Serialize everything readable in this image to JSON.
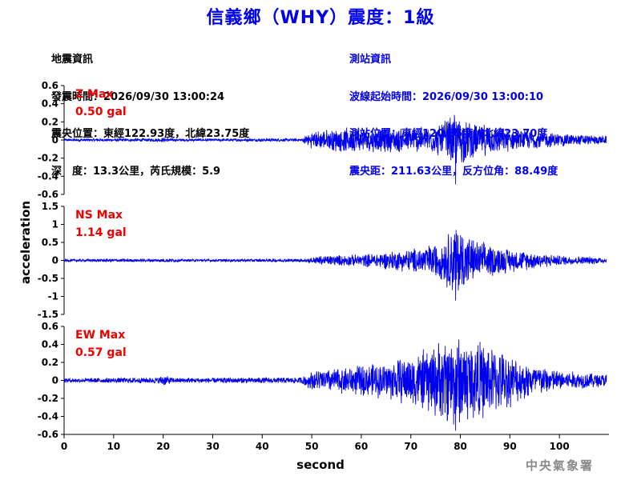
{
  "title": "信義鄉（WHY）震度：1級",
  "quake_info": {
    "heading": "地震資訊",
    "time": "發震時間：2026/09/30 13:00:24",
    "epicenter": "震央位置：東經122.93度，北緯23.75度",
    "depth": "深　度：13.3公里，芮氏規模：5.9"
  },
  "station_info": {
    "heading": "測站資訊",
    "wave_start": "波線起始時間：2026/09/30 13:00:10",
    "location": "測站位置：東經120.85度，北緯23.70度",
    "distance": "震央距：211.63公里，反方位角：88.49度"
  },
  "credit": "中央氣象署",
  "colors": {
    "trace": "#0000ee",
    "max_label": "#ee0000",
    "title": "#0000ee",
    "axis": "#000000"
  },
  "chart_data": [
    {
      "type": "line",
      "component": "Z",
      "max_label": "Z Max",
      "max_value": "0.50 gal",
      "peak": 0.5,
      "ylim": [
        -0.6,
        0.6
      ],
      "yticks": [
        "0.6",
        "0.4",
        "0.2",
        "0",
        "-0.2",
        "-0.4",
        "-0.6"
      ],
      "ytick_values": [
        0.6,
        0.4,
        0.2,
        0,
        -0.2,
        -0.4,
        -0.6
      ],
      "envelope": {
        "pre_event": 0.012,
        "onset_s": 49,
        "segments": [
          {
            "t": 0,
            "amp": 0.012
          },
          {
            "t": 18,
            "amp": 0.015
          },
          {
            "t": 20,
            "amp": 0.02
          },
          {
            "t": 23,
            "amp": 0.012
          },
          {
            "t": 48,
            "amp": 0.015
          },
          {
            "t": 50,
            "amp": 0.1
          },
          {
            "t": 55,
            "amp": 0.14
          },
          {
            "t": 65,
            "amp": 0.14
          },
          {
            "t": 75,
            "amp": 0.16
          },
          {
            "t": 79,
            "amp": 0.33
          },
          {
            "t": 82,
            "amp": 0.22
          },
          {
            "t": 90,
            "amp": 0.13
          },
          {
            "t": 100,
            "amp": 0.08
          },
          {
            "t": 109,
            "amp": 0.05
          }
        ]
      }
    },
    {
      "type": "line",
      "component": "NS",
      "max_label": "NS Max",
      "max_value": "1.14 gal",
      "peak": 1.14,
      "ylim": [
        -1.5,
        1.5
      ],
      "yticks": [
        "1.5",
        "1",
        "0.5",
        "0",
        "-0.5",
        "-1",
        "-1.5"
      ],
      "ytick_values": [
        1.5,
        1,
        0.5,
        0,
        -0.5,
        -1,
        -1.5
      ],
      "envelope": {
        "pre_event": 0.03,
        "onset_s": 49,
        "segments": [
          {
            "t": 0,
            "amp": 0.03
          },
          {
            "t": 19,
            "amp": 0.04
          },
          {
            "t": 21,
            "amp": 0.05
          },
          {
            "t": 24,
            "amp": 0.03
          },
          {
            "t": 48,
            "amp": 0.04
          },
          {
            "t": 52,
            "amp": 0.15
          },
          {
            "t": 60,
            "amp": 0.18
          },
          {
            "t": 70,
            "amp": 0.35
          },
          {
            "t": 76,
            "amp": 0.55
          },
          {
            "t": 79,
            "amp": 1.14
          },
          {
            "t": 83,
            "amp": 0.6
          },
          {
            "t": 90,
            "amp": 0.35
          },
          {
            "t": 100,
            "amp": 0.15
          },
          {
            "t": 109,
            "amp": 0.1
          }
        ]
      }
    },
    {
      "type": "line",
      "component": "EW",
      "max_label": "EW Max",
      "max_value": "0.57 gal",
      "peak": 0.57,
      "ylim": [
        -0.6,
        0.6
      ],
      "yticks": [
        "0.6",
        "0.4",
        "0.2",
        "0",
        "-0.2",
        "-0.4",
        "-0.6"
      ],
      "ytick_values": [
        0.6,
        0.4,
        0.2,
        0,
        -0.2,
        -0.4,
        -0.6
      ],
      "envelope": {
        "pre_event": 0.02,
        "onset_s": 49,
        "segments": [
          {
            "t": 0,
            "amp": 0.02
          },
          {
            "t": 19,
            "amp": 0.03
          },
          {
            "t": 20,
            "amp": 0.06
          },
          {
            "t": 22,
            "amp": 0.025
          },
          {
            "t": 48,
            "amp": 0.03
          },
          {
            "t": 50,
            "amp": 0.12
          },
          {
            "t": 55,
            "amp": 0.15
          },
          {
            "t": 65,
            "amp": 0.22
          },
          {
            "t": 72,
            "amp": 0.35
          },
          {
            "t": 79,
            "amp": 0.57
          },
          {
            "t": 85,
            "amp": 0.45
          },
          {
            "t": 92,
            "amp": 0.25
          },
          {
            "t": 100,
            "amp": 0.12
          },
          {
            "t": 109,
            "amp": 0.08
          }
        ]
      }
    }
  ],
  "xaxis": {
    "label": "second",
    "ticks": [
      "0",
      "10",
      "20",
      "30",
      "40",
      "50",
      "60",
      "70",
      "80",
      "90",
      "100"
    ],
    "tick_values": [
      0,
      10,
      20,
      30,
      40,
      50,
      60,
      70,
      80,
      90,
      100
    ],
    "xlim": [
      0,
      110
    ]
  },
  "yaxis": {
    "label": "acceleration"
  }
}
